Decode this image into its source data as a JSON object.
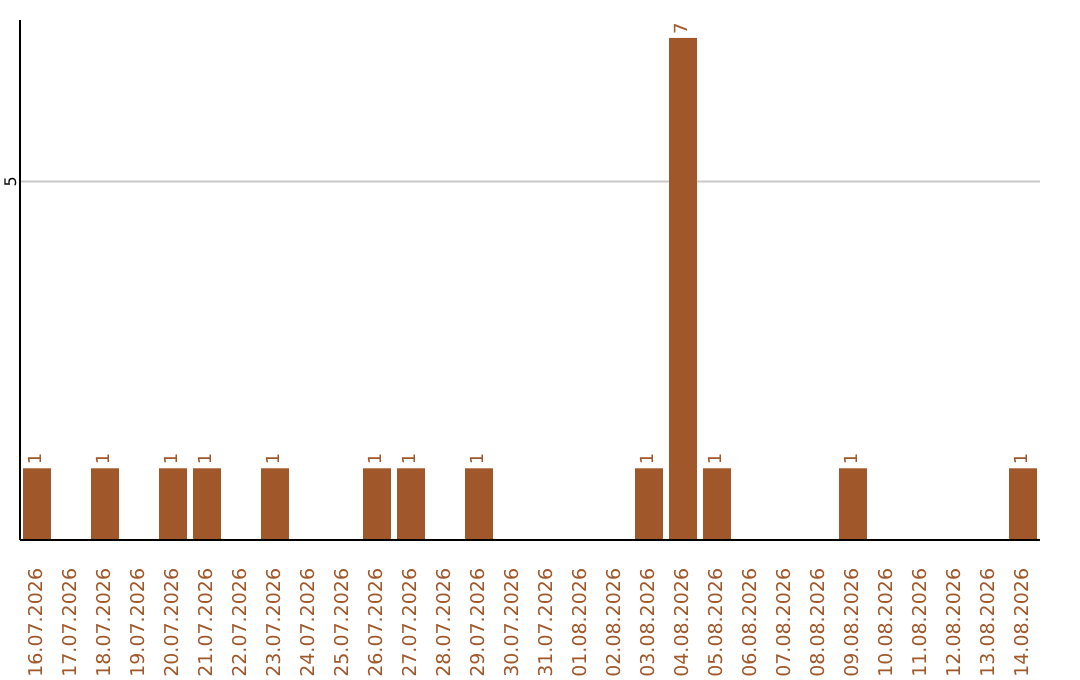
{
  "chart_data": {
    "type": "bar",
    "categories": [
      "16.07.2026",
      "17.07.2026",
      "18.07.2026",
      "19.07.2026",
      "20.07.2026",
      "21.07.2026",
      "22.07.2026",
      "23.07.2026",
      "24.07.2026",
      "25.07.2026",
      "26.07.2026",
      "27.07.2026",
      "28.07.2026",
      "29.07.2026",
      "30.07.2026",
      "31.07.2026",
      "01.08.2026",
      "02.08.2026",
      "03.08.2026",
      "04.08.2026",
      "05.08.2026",
      "06.08.2026",
      "07.08.2026",
      "08.08.2026",
      "09.08.2026",
      "10.08.2026",
      "11.08.2026",
      "12.08.2026",
      "13.08.2026",
      "14.08.2026"
    ],
    "values": [
      1,
      0,
      1,
      0,
      1,
      1,
      0,
      1,
      0,
      0,
      1,
      1,
      0,
      1,
      0,
      0,
      0,
      0,
      1,
      7,
      1,
      0,
      0,
      0,
      1,
      0,
      0,
      0,
      0,
      1
    ],
    "value_labels": [
      "1",
      null,
      "1",
      null,
      "1",
      "1",
      null,
      "1",
      null,
      null,
      "1",
      "1",
      null,
      "1",
      null,
      null,
      null,
      null,
      "1",
      "7",
      "1",
      null,
      null,
      null,
      "1",
      null,
      null,
      null,
      null,
      "1"
    ],
    "color": "#a0582a",
    "ylim": [
      0,
      7.25
    ],
    "yticks": [
      5
    ],
    "grid": "y"
  }
}
